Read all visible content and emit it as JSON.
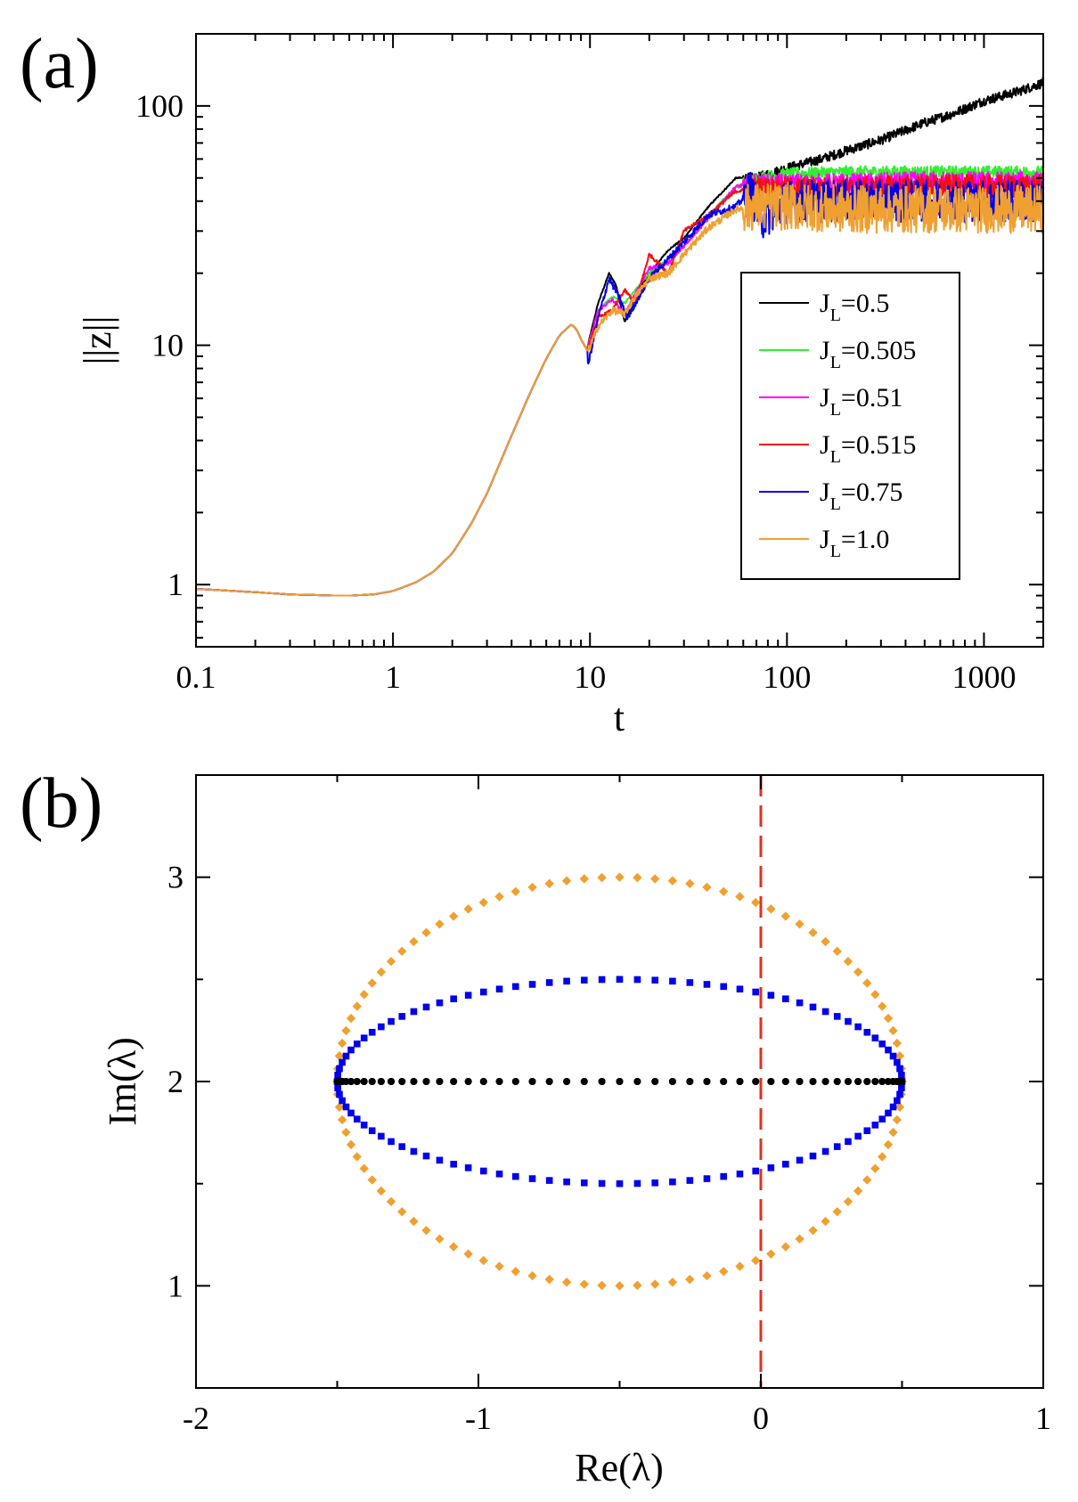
{
  "chart_data": [
    {
      "panel_label": "(a)",
      "type": "line",
      "xlabel": "t",
      "ylabel": "||z||",
      "xscale": "log",
      "yscale": "log",
      "xlim": [
        0.1,
        2000
      ],
      "ylim": [
        0.55,
        200
      ],
      "xticks": [
        {
          "value": 0.1,
          "label": "0.1"
        },
        {
          "value": 1,
          "label": "1"
        },
        {
          "value": 10,
          "label": "10"
        },
        {
          "value": 100,
          "label": "100"
        },
        {
          "value": 1000,
          "label": "1000"
        }
      ],
      "yticks": [
        {
          "value": 1,
          "label": "1"
        },
        {
          "value": 10,
          "label": "10"
        },
        {
          "value": 100,
          "label": "100"
        }
      ],
      "legend_position": "right",
      "common_curve": {
        "x": [
          0.1,
          0.2,
          0.3,
          0.5,
          0.6,
          0.8,
          1.0,
          1.3,
          1.6,
          2.0,
          2.5,
          3.0,
          4.0,
          5.0,
          6.0,
          7.0,
          8.0,
          8.5,
          9.0,
          9.7
        ],
        "y": [
          0.96,
          0.93,
          0.91,
          0.9,
          0.9,
          0.91,
          0.94,
          1.02,
          1.13,
          1.35,
          1.8,
          2.4,
          4.2,
          6.4,
          8.8,
          11.0,
          12.2,
          11.8,
          10.6,
          9.5
        ]
      },
      "series": [
        {
          "name_main": "J",
          "name_sub": "L",
          "name_value": "=0.5",
          "color": "#000000",
          "x": [
            9.7,
            11,
            12.5,
            13.5,
            15,
            17,
            20,
            25,
            30,
            40,
            55,
            70,
            100,
            150,
            200,
            300,
            500,
            700,
            1000,
            1500,
            2000
          ],
          "y": [
            9.8,
            15,
            20,
            18,
            12.5,
            16,
            20,
            25,
            28,
            38,
            50,
            50,
            55,
            60,
            65,
            72,
            85,
            93,
            105,
            115,
            125
          ],
          "noise": 0.04
        },
        {
          "name_main": "J",
          "name_sub": "L",
          "name_value": "=0.505",
          "color": "#33ee33",
          "x": [
            9.7,
            11,
            13,
            15,
            17,
            20,
            25,
            30,
            40,
            55,
            70,
            100,
            200,
            500,
            1000,
            2000
          ],
          "y": [
            9.7,
            14,
            16,
            15,
            17,
            20,
            23,
            26,
            35,
            46,
            50,
            52,
            53,
            53,
            53,
            53
          ],
          "noise": 0.05
        },
        {
          "name_main": "J",
          "name_sub": "L",
          "name_value": "=0.51",
          "color": "#ff00ff",
          "x": [
            9.7,
            11,
            13,
            15,
            17,
            20,
            25,
            30,
            40,
            55,
            70,
            100,
            200,
            500,
            1000,
            2000
          ],
          "y": [
            9.6,
            14,
            15.5,
            13.5,
            16.5,
            21,
            22,
            26,
            34,
            46,
            47,
            47,
            47,
            48,
            48,
            48
          ],
          "noise": 0.09
        },
        {
          "name_main": "J",
          "name_sub": "L",
          "name_value": "=0.515",
          "color": "#ee1111",
          "x": [
            9.7,
            11,
            13,
            15,
            17,
            20,
            25,
            30,
            40,
            55,
            70,
            100,
            200,
            500,
            1000,
            2000
          ],
          "y": [
            9.5,
            13,
            14,
            17,
            15,
            24,
            20,
            30,
            35,
            44,
            45,
            45,
            45,
            46,
            46,
            46
          ],
          "noise": 0.1
        },
        {
          "name_main": "J",
          "name_sub": "L",
          "name_value": "=0.75",
          "color": "#0000ee",
          "x": [
            9.7,
            11,
            12.5,
            14,
            15.5,
            17,
            20,
            25,
            30,
            40,
            55,
            65,
            70,
            75,
            100,
            200,
            500,
            1000,
            2000
          ],
          "y": [
            8.0,
            13,
            19,
            16,
            13,
            15,
            19,
            23,
            27,
            35,
            38,
            44,
            38,
            34,
            40,
            40,
            40,
            40,
            40
          ],
          "noise": 0.18
        },
        {
          "name_main": "J",
          "name_sub": "L",
          "name_value": "=1.0",
          "color": "#f0a030",
          "x": [
            9.7,
            11,
            13,
            15,
            17,
            20,
            25,
            30,
            40,
            55,
            70,
            100,
            200,
            500,
            1000,
            2000
          ],
          "y": [
            9.3,
            12,
            14,
            13.5,
            16,
            19,
            20,
            24,
            31,
            37,
            38,
            38,
            37,
            37,
            37,
            37
          ],
          "noise": 0.2
        }
      ]
    },
    {
      "panel_label": "(b)",
      "type": "scatter",
      "xlabel": "Re(λ)",
      "ylabel": "Im(λ)",
      "xlim": [
        -2,
        1
      ],
      "ylim": [
        0.5,
        3.5
      ],
      "xticks": [
        {
          "value": -2,
          "label": "-2"
        },
        {
          "value": -1,
          "label": "-1"
        },
        {
          "value": 0,
          "label": "0"
        },
        {
          "value": 1,
          "label": "1"
        }
      ],
      "yticks": [
        {
          "value": 1,
          "label": "1"
        },
        {
          "value": 2,
          "label": "2"
        },
        {
          "value": 3,
          "label": "3"
        }
      ],
      "vertical_line": {
        "x": 0,
        "color": "#dd3322",
        "style": "dashed"
      },
      "series": [
        {
          "color": "#f0a030",
          "marker": "diamond",
          "center": [
            -0.5,
            2
          ],
          "radius_x": 1.0,
          "radius_y": 1.0,
          "count": 100
        },
        {
          "color": "#0000ee",
          "marker": "square",
          "center": [
            -0.5,
            2
          ],
          "radius_x": 1.0,
          "radius_y": 0.5,
          "count": 100
        },
        {
          "color": "#000000",
          "marker": "circle",
          "center": [
            -0.5,
            2
          ],
          "radius_x": 1.0,
          "radius_y": 0.0,
          "count": 100
        }
      ]
    }
  ]
}
